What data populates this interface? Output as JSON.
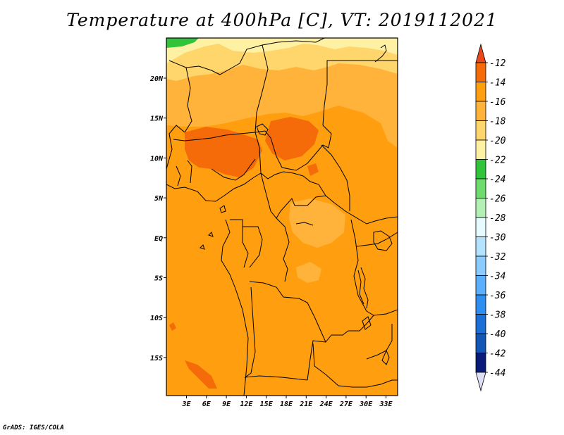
{
  "title": "Temperature at 400hPa [C], VT: 2019112021",
  "credit": "GrADS: IGES/COLA",
  "map": {
    "lat_labels": [
      "20N",
      "15N",
      "10N",
      "5N",
      "EQ",
      "5S",
      "10S",
      "15S"
    ],
    "lon_labels": [
      "3E",
      "6E",
      "9E",
      "12E",
      "15E",
      "18E",
      "21E",
      "24E",
      "27E",
      "30E",
      "33E"
    ]
  },
  "colorbar": {
    "labels": [
      "-12",
      "-14",
      "-16",
      "-18",
      "-20",
      "-22",
      "-24",
      "-26",
      "-28",
      "-30",
      "-32",
      "-34",
      "-36",
      "-38",
      "-40",
      "-42",
      "-44"
    ],
    "colors": [
      "#e8491c",
      "#f56b0a",
      "#ff9f0f",
      "#ffb33a",
      "#ffd66b",
      "#fff1a3",
      "#31c43b",
      "#6edb6e",
      "#b3f0b3",
      "#e6fbff",
      "#b4e3ff",
      "#8ccbff",
      "#5cb0fb",
      "#2f8ff0",
      "#1c6fd6",
      "#1256b8",
      "#0a1a78",
      "#dedef5"
    ]
  }
}
